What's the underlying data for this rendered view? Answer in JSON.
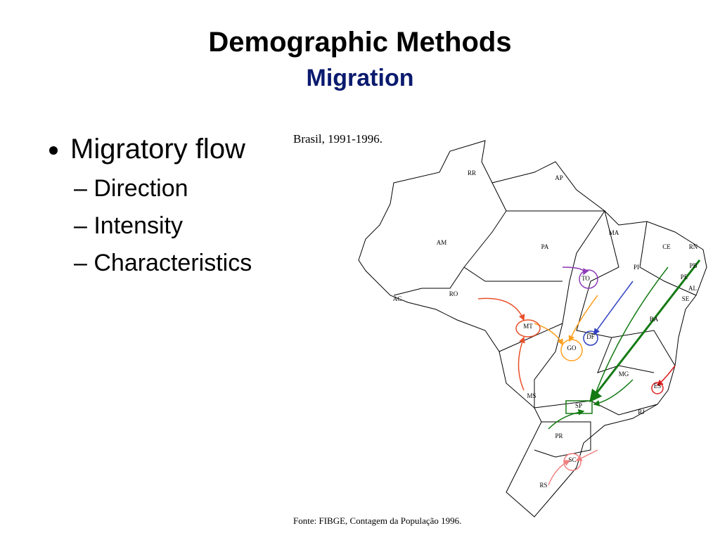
{
  "header": {
    "title": "Demographic Methods",
    "subtitle": "Migration"
  },
  "bullets": {
    "main": "Migratory flow",
    "sub": [
      "– Direction",
      "– Intensity",
      "– Characteristics"
    ]
  },
  "map": {
    "caption": "Brasil, 1991-1996.",
    "source": "Fonte: FIBGE, Contagem da População 1996.",
    "states": [
      "RR",
      "AP",
      "AM",
      "PA",
      "MA",
      "CE",
      "RN",
      "PB",
      "PE",
      "AL",
      "SE",
      "PI",
      "TO",
      "AC",
      "RO",
      "MT",
      "DF",
      "GO",
      "BA",
      "MG",
      "ES",
      "RJ",
      "SP",
      "MS",
      "PR",
      "SC",
      "RS"
    ]
  }
}
